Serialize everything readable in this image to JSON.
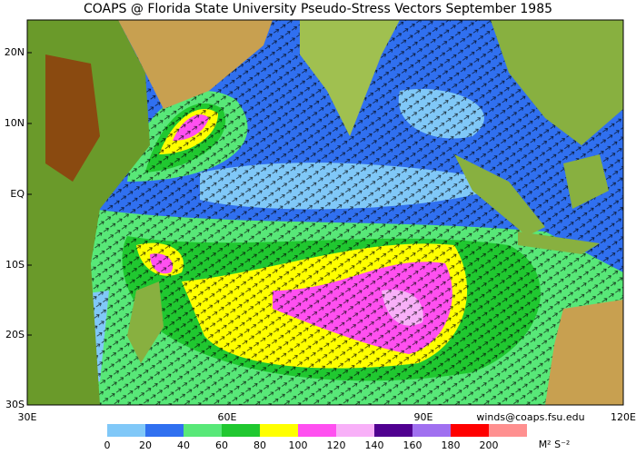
{
  "title": "COAPS @ Florida State University Pseudo-Stress Vectors  September 1985",
  "lat_labels": [
    "20N",
    "10N",
    "EQ",
    "10S",
    "20S",
    "30S"
  ],
  "lon_labels": [
    "30E",
    "60E",
    "90E",
    "120E"
  ],
  "credit": "winds@coaps.fsu.edu",
  "colorbar": {
    "colors": [
      "#80c8f8",
      "#3070f0",
      "#58e878",
      "#20c830",
      "#ffff00",
      "#ff50f0",
      "#f8b0f8",
      "#500090",
      "#a070f0",
      "#ff0000",
      "#ff9090"
    ],
    "ticks": [
      0,
      20,
      40,
      60,
      80,
      100,
      120,
      140,
      160,
      180,
      200
    ],
    "units": "M² S⁻²"
  }
}
